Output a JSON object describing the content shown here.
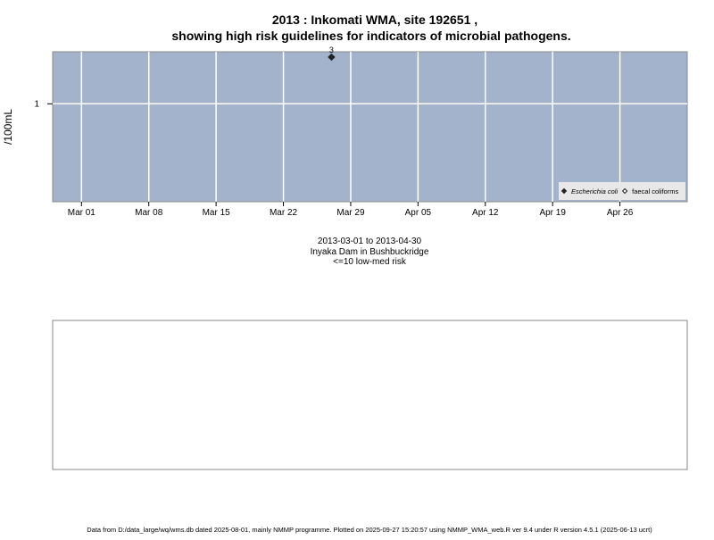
{
  "chart_data": {
    "type": "scatter",
    "title": [
      "2013 : Inkomati WMA, site 192651 ,",
      "showing high risk guidelines for indicators of microbial pathogens."
    ],
    "y_label": "/100mL",
    "subtitle": [
      "2013-03-01 to 2013-04-30",
      "Inyaka Dam in Bushbuckridge",
      "<=10 low-med risk"
    ],
    "footer": "Data from D:/data_large/wq/wms.db dated 2025-08-01, mainly NMMP programme. Plotted on 2025-09-27 15:20:57 using NMMP_WMA_web.R ver 9.4 under R version 4.5.1 (2025-06-13 ucrt)",
    "log_y": true,
    "grid": true,
    "legend": "bottom-right",
    "background": "#a3b3cc",
    "xlim": [
      "2013-02-26",
      "2013-05-03"
    ],
    "ylim": [
      0.1,
      3.4
    ],
    "xticks": [
      {
        "value": "2013-03-01",
        "label": "Mar 01"
      },
      {
        "value": "2013-03-08",
        "label": "Mar 08"
      },
      {
        "value": "2013-03-15",
        "label": "Mar 15"
      },
      {
        "value": "2013-03-22",
        "label": "Mar 22"
      },
      {
        "value": "2013-03-29",
        "label": "Mar 29"
      },
      {
        "value": "2013-04-05",
        "label": "Apr 05"
      },
      {
        "value": "2013-04-12",
        "label": "Apr 12"
      },
      {
        "value": "2013-04-19",
        "label": "Apr 19"
      },
      {
        "value": "2013-04-26",
        "label": "Apr 26"
      }
    ],
    "yticks": [
      1
    ],
    "series": [
      {
        "name": "Escherichia coli",
        "color": "#222222",
        "filled": true,
        "x": [
          "2013-03-27"
        ],
        "values": [
          3
        ],
        "value_labels": [
          "3"
        ]
      },
      {
        "name": "faecal coliforms",
        "color": "#222222",
        "filled": false,
        "x": [],
        "values": []
      }
    ]
  }
}
